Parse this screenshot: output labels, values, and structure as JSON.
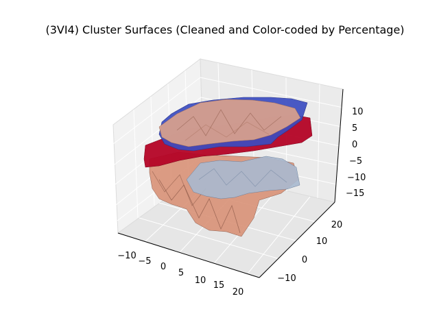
{
  "chart_data": {
    "type": "3d-surface",
    "title": "(3VI4) Cluster Surfaces (Cleaned and Color-coded by Percentage)",
    "xlabel": "",
    "ylabel": "",
    "zlabel": "",
    "x_ticks": [
      "−10",
      "−5",
      "0",
      "5",
      "10",
      "15",
      "20"
    ],
    "y_ticks": [
      "−10",
      "0",
      "10",
      "20"
    ],
    "z_ticks": [
      "10",
      "5",
      "0",
      "−5",
      "−10",
      "−15"
    ],
    "xlim": [
      -13,
      22
    ],
    "ylim": [
      -15,
      25
    ],
    "zlim": [
      -17,
      13
    ],
    "grid": true,
    "colormap": "coolwarm",
    "surfaces": [
      {
        "id": "bottom-dome",
        "color": "#d99479",
        "z_range": [
          -16,
          -2
        ]
      },
      {
        "id": "grey-slab",
        "color": "#a9b9cf",
        "z_range": [
          -8,
          -2
        ]
      },
      {
        "id": "red-band",
        "color": "#b40426",
        "z_range": [
          -4,
          4
        ]
      },
      {
        "id": "blue-cap",
        "color": "#3b4cc0",
        "z_range": [
          5,
          12
        ]
      },
      {
        "id": "peach-cap",
        "color": "#d8a08c",
        "z_range": [
          4,
          12
        ]
      }
    ]
  }
}
